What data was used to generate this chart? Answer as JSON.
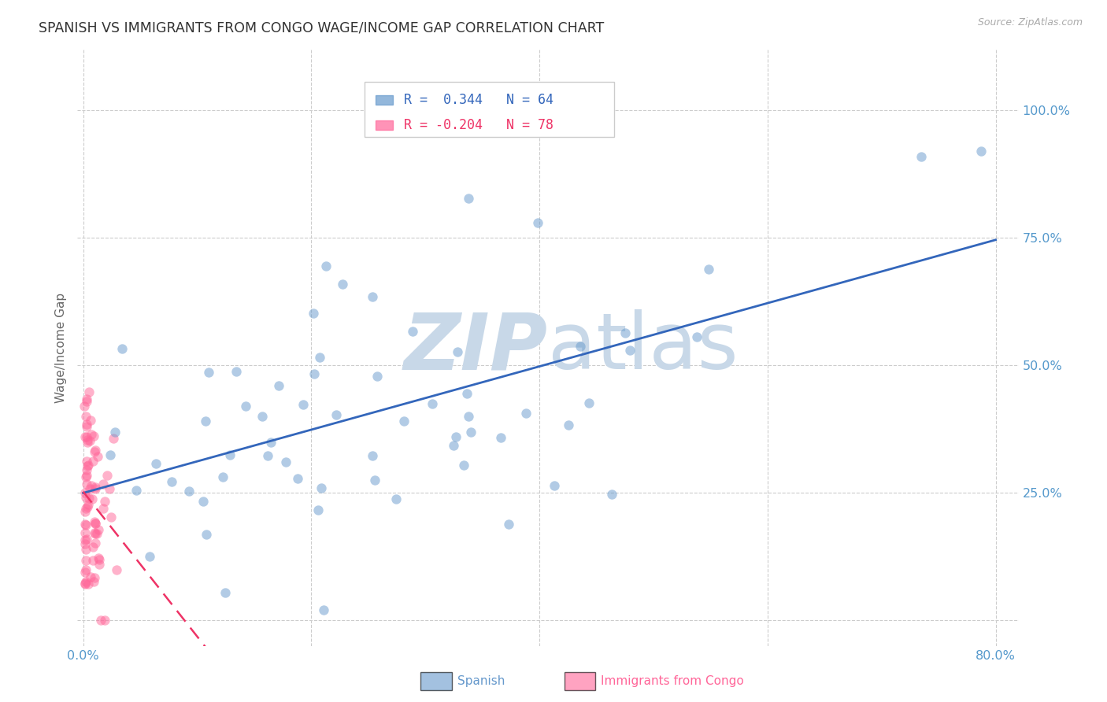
{
  "title": "SPANISH VS IMMIGRANTS FROM CONGO WAGE/INCOME GAP CORRELATION CHART",
  "source": "Source: ZipAtlas.com",
  "ylabel": "Wage/Income Gap",
  "xlim": [
    -0.005,
    0.82
  ],
  "ylim": [
    -0.05,
    1.12
  ],
  "ytick_vals": [
    0.0,
    0.25,
    0.5,
    0.75,
    1.0
  ],
  "xtick_vals": [
    0.0,
    0.2,
    0.4,
    0.6,
    0.8
  ],
  "spanish_color": "#6699cc",
  "spanish_line_color": "#3366bb",
  "congo_color": "#ff6699",
  "congo_line_color": "#ee3366",
  "spanish_r": 0.344,
  "spanish_n": 64,
  "congo_r": -0.204,
  "congo_n": 78,
  "watermark_zip": "ZIP",
  "watermark_atlas": "atlas",
  "watermark_color": "#c8d8e8",
  "background_color": "#ffffff",
  "grid_color": "#cccccc",
  "title_color": "#333333",
  "tick_color": "#5599cc",
  "axis_label_color": "#666666"
}
